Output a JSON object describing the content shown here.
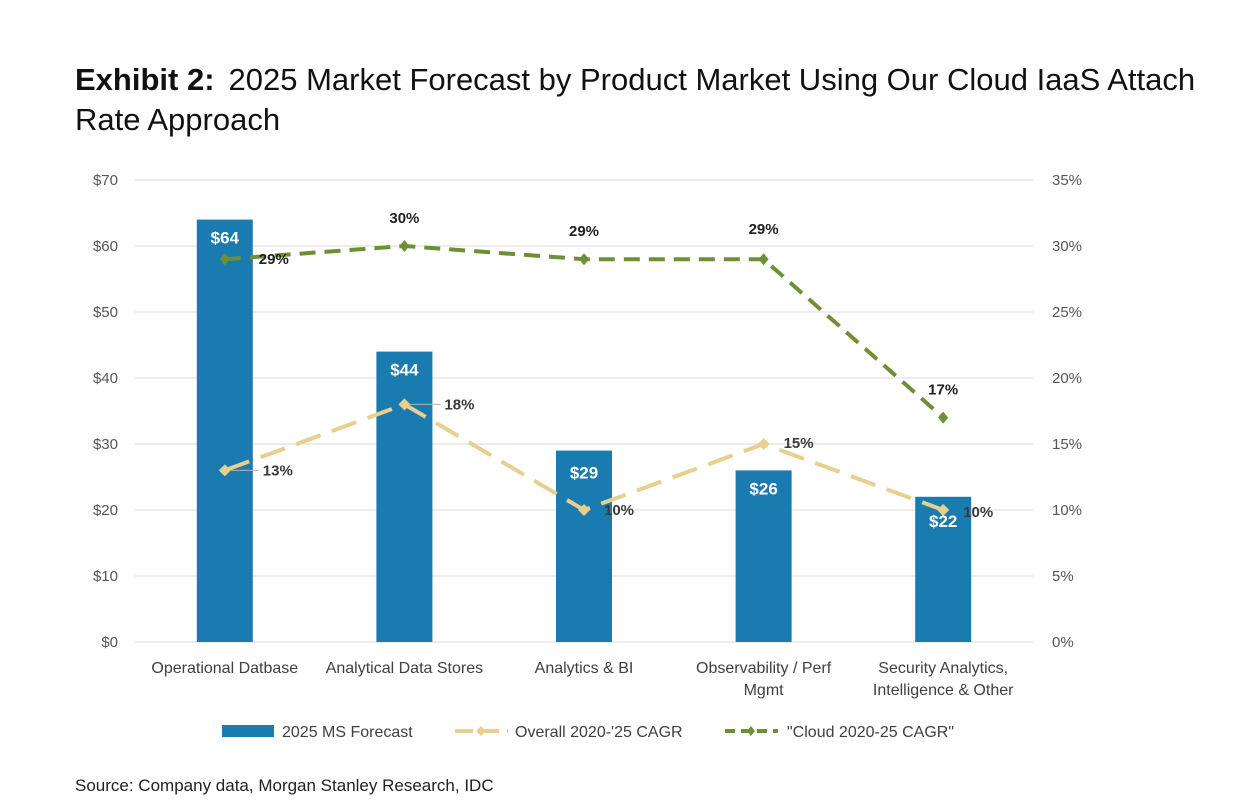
{
  "title": {
    "prefix": "Exhibit 2:",
    "text": "2025 Market Forecast by Product Market Using Our Cloud IaaS Attach Rate Approach"
  },
  "source": "Source: Company data, Morgan Stanley Research, IDC",
  "colors": {
    "bar": "#1a7bb0",
    "overall_line": "#e8cf8e",
    "cloud_line": "#6f8f35",
    "grid": "#d9d9d9",
    "axis_text": "#555555"
  },
  "chart_data": {
    "type": "bar",
    "categories": [
      "Operational Datbase",
      "Analytical Data Stores",
      "Analytics & BI",
      "Observability / Perf Mgmt",
      "Security Analytics, Intelligence & Other"
    ],
    "y_left": {
      "ylim": [
        0,
        70
      ],
      "ticks": [
        0,
        10,
        20,
        30,
        40,
        50,
        60,
        70
      ],
      "tick_labels": [
        "$0",
        "$10",
        "$20",
        "$30",
        "$40",
        "$50",
        "$60",
        "$70"
      ]
    },
    "y_right": {
      "ylim": [
        0,
        35
      ],
      "ticks": [
        0,
        5,
        10,
        15,
        20,
        25,
        30,
        35
      ],
      "tick_labels": [
        "0%",
        "5%",
        "10%",
        "15%",
        "20%",
        "25%",
        "30%",
        "35%"
      ]
    },
    "grid": true,
    "legend_position": "bottom",
    "series": [
      {
        "name": "2025 MS Forecast",
        "type": "bar",
        "axis": "left",
        "values": [
          64,
          44,
          29,
          26,
          22
        ],
        "labels": [
          "$64",
          "$44",
          "$29",
          "$26",
          "$22"
        ]
      },
      {
        "name": "Overall 2020-'25 CAGR",
        "type": "line",
        "style": "dashed",
        "axis": "right",
        "values": [
          13,
          18,
          10,
          15,
          10
        ],
        "labels": [
          "13%",
          "18%",
          "10%",
          "15%",
          "10%"
        ]
      },
      {
        "name": "\"Cloud 2020-25 CAGR\"",
        "type": "line",
        "style": "dashed",
        "axis": "right",
        "values": [
          29,
          30,
          29,
          29,
          17
        ],
        "labels": [
          "29%",
          "30%",
          "29%",
          "29%",
          "17%"
        ]
      }
    ]
  }
}
